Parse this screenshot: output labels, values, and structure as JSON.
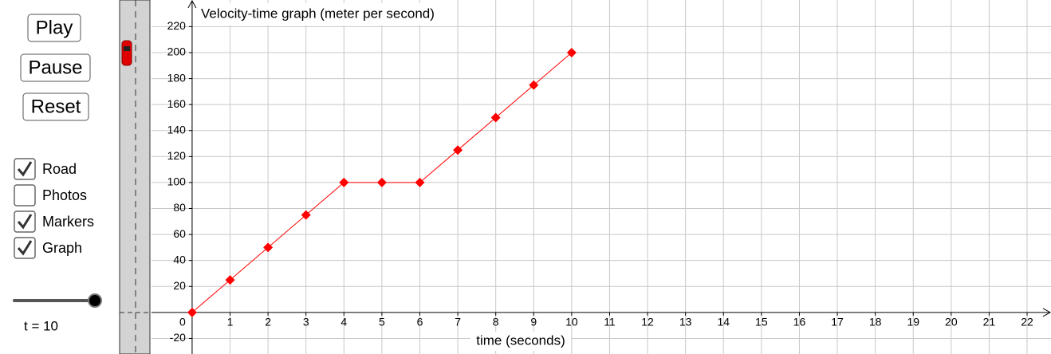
{
  "controls": {
    "buttons": [
      "Play",
      "Pause",
      "Reset"
    ],
    "checkboxes": [
      {
        "label": "Road",
        "checked": true
      },
      {
        "label": "Photos",
        "checked": false
      },
      {
        "label": "Markers",
        "checked": true
      },
      {
        "label": "Graph",
        "checked": true
      }
    ],
    "slider_label": "t = 10"
  },
  "chart_data": {
    "type": "line",
    "title": "Velocity-time graph (meter per second)",
    "x_label": "time (seconds)",
    "x": [
      0,
      1,
      2,
      3,
      4,
      5,
      6,
      7,
      8,
      9,
      10
    ],
    "series": [
      {
        "color": "#ff0000",
        "values": [
          0,
          25,
          50,
          75,
          100,
          100,
          100,
          125,
          150,
          175,
          200
        ]
      }
    ],
    "xlim": [
      -1.07,
      22.63
    ],
    "ylim": [
      -32,
      240.5
    ],
    "xticks": [
      0,
      1,
      2,
      3,
      4,
      5,
      6,
      7,
      8,
      9,
      10,
      11,
      12,
      13,
      14,
      15,
      16,
      17,
      18,
      19,
      20,
      21,
      22
    ],
    "yticks": [
      -20,
      20,
      40,
      60,
      80,
      100,
      120,
      140,
      160,
      180,
      200,
      220
    ],
    "grid": true,
    "markers": "diamond"
  }
}
